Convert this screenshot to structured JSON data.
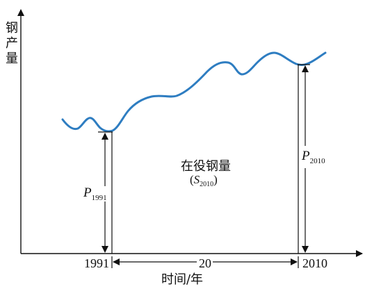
{
  "y_axis_label": [
    "钢",
    "产",
    "量"
  ],
  "x_axis_label": "时间/年",
  "year_start": "1991",
  "year_end": "2010",
  "interval_label": "20",
  "center_label": "在役钢量",
  "stock_symbol": "S",
  "stock_subscript": "2010",
  "p_start_symbol": "P",
  "p_start_subscript": "1991",
  "p_end_symbol": "P",
  "p_end_subscript": "2010",
  "colors": {
    "curve": "#2e7dc1",
    "axes": "#111111"
  }
}
